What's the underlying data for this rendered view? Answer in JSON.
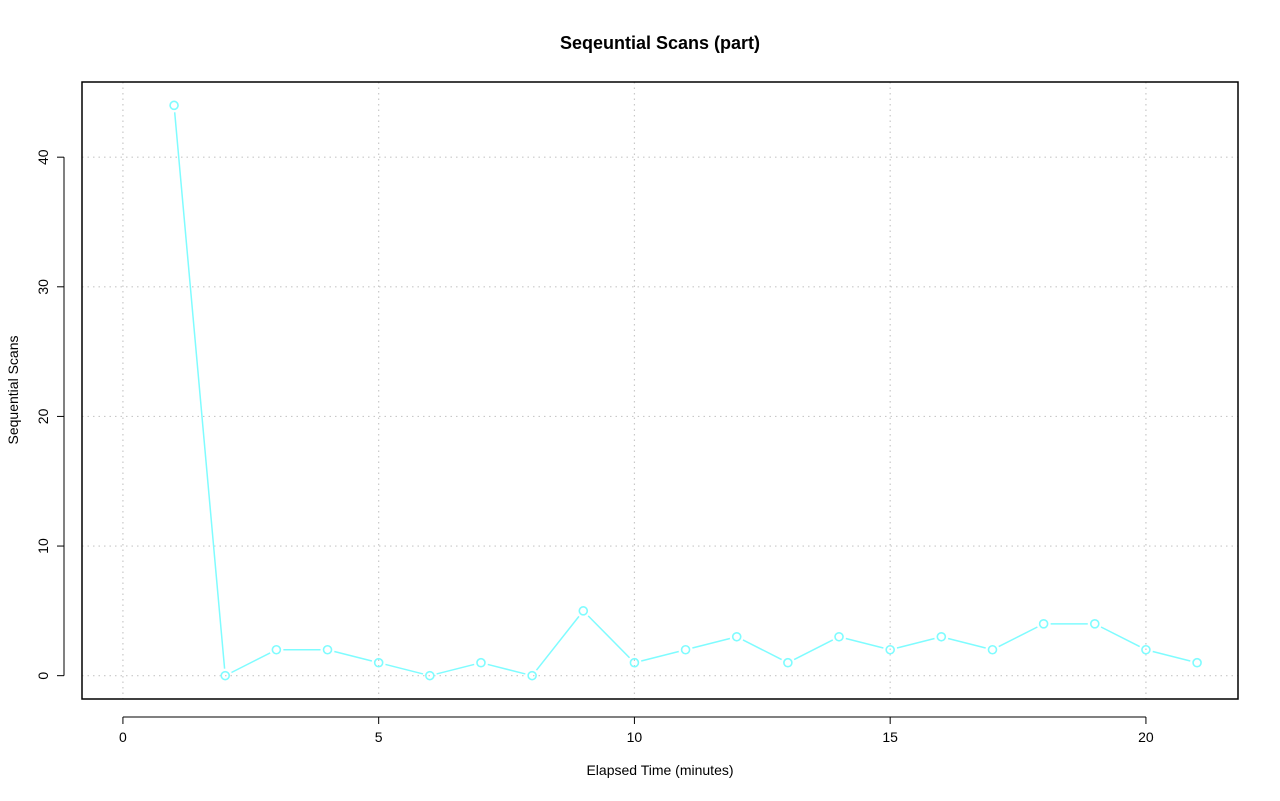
{
  "chart_data": {
    "type": "line",
    "title": "Seqeuntial Scans (part)",
    "xlabel": "Elapsed Time (minutes)",
    "ylabel": "Sequential Scans",
    "xlim": [
      -0.8,
      21.8
    ],
    "ylim": [
      -1.8,
      45.8
    ],
    "x_ticks": [
      0,
      5,
      10,
      15,
      20
    ],
    "y_ticks": [
      0,
      10,
      20,
      30,
      40
    ],
    "grid": true,
    "series": [
      {
        "color": "#7ffcff",
        "marker": "open-circle",
        "x": [
          1,
          2,
          3,
          4,
          5,
          6,
          7,
          8,
          9,
          10,
          11,
          12,
          13,
          14,
          15,
          16,
          17,
          18,
          19,
          20,
          21
        ],
        "y": [
          44,
          0,
          2,
          2,
          1,
          0,
          1,
          0,
          5,
          1,
          2,
          3,
          1,
          3,
          2,
          3,
          2,
          4,
          4,
          2,
          1
        ]
      }
    ]
  }
}
